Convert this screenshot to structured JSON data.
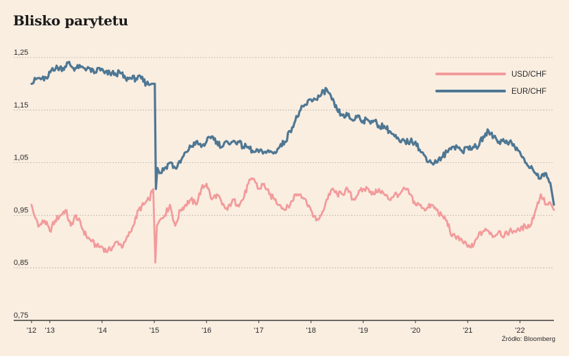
{
  "title": "Blisko parytetu",
  "source": "Źródło: Bloomberg",
  "colors": {
    "background": "#FAEEE1",
    "usdchf": "#F29B9B",
    "eurchf": "#4E7793",
    "grid": "#B8B0A8",
    "axis": "#3A3A3A"
  },
  "chart_data": {
    "type": "line",
    "title": "Blisko parytetu",
    "xlabel": "",
    "ylabel": "",
    "ylim": [
      0.75,
      1.25
    ],
    "yticks": [
      "1,25",
      "1,15",
      "1,05",
      "0,95",
      "0,85",
      "0,75"
    ],
    "ytick_values": [
      1.25,
      1.15,
      1.05,
      0.95,
      0.85,
      0.75
    ],
    "xlim": [
      2012.65,
      2022.65
    ],
    "xticks": [
      "'12",
      "'13",
      "'14",
      "'15",
      "'16",
      "'17",
      "'18",
      "'19",
      "'20",
      "'21",
      "'22"
    ],
    "xtick_values": [
      2012.65,
      2013,
      2014,
      2015,
      2016,
      2017,
      2018,
      2019,
      2020,
      2021,
      2022
    ],
    "grid": "horizontal dashed",
    "legend": "top-right",
    "series": [
      {
        "name": "USD/CHF",
        "x": [
          2012.65,
          2012.7,
          2012.8,
          2012.9,
          2013.0,
          2013.1,
          2013.2,
          2013.3,
          2013.4,
          2013.5,
          2013.6,
          2013.7,
          2013.8,
          2013.9,
          2014.0,
          2014.1,
          2014.2,
          2014.3,
          2014.4,
          2014.5,
          2014.6,
          2014.7,
          2014.8,
          2014.9,
          2014.98,
          2015.02,
          2015.05,
          2015.1,
          2015.2,
          2015.3,
          2015.4,
          2015.5,
          2015.6,
          2015.7,
          2015.8,
          2015.9,
          2016.0,
          2016.1,
          2016.2,
          2016.3,
          2016.4,
          2016.5,
          2016.6,
          2016.7,
          2016.8,
          2016.9,
          2017.0,
          2017.1,
          2017.2,
          2017.3,
          2017.4,
          2017.5,
          2017.6,
          2017.7,
          2017.8,
          2017.9,
          2018.0,
          2018.1,
          2018.2,
          2018.3,
          2018.4,
          2018.5,
          2018.6,
          2018.7,
          2018.8,
          2018.9,
          2019.0,
          2019.1,
          2019.2,
          2019.3,
          2019.4,
          2019.5,
          2019.6,
          2019.7,
          2019.8,
          2019.9,
          2020.0,
          2020.1,
          2020.2,
          2020.3,
          2020.4,
          2020.5,
          2020.6,
          2020.7,
          2020.8,
          2020.9,
          2021.0,
          2021.1,
          2021.2,
          2021.3,
          2021.4,
          2021.5,
          2021.6,
          2021.7,
          2021.8,
          2021.9,
          2022.0,
          2022.1,
          2022.2,
          2022.3,
          2022.4,
          2022.5,
          2022.6,
          2022.65
        ],
        "values": [
          0.97,
          0.95,
          0.93,
          0.94,
          0.92,
          0.94,
          0.95,
          0.96,
          0.93,
          0.95,
          0.93,
          0.91,
          0.9,
          0.89,
          0.89,
          0.88,
          0.89,
          0.9,
          0.89,
          0.91,
          0.93,
          0.96,
          0.97,
          0.98,
          1.0,
          0.86,
          0.93,
          0.94,
          0.95,
          0.97,
          0.93,
          0.96,
          0.97,
          0.98,
          0.97,
          1.0,
          1.01,
          0.98,
          0.99,
          0.97,
          0.96,
          0.98,
          0.97,
          0.98,
          1.01,
          1.02,
          1.0,
          1.01,
          0.99,
          0.98,
          0.97,
          0.96,
          0.97,
          0.99,
          0.99,
          0.98,
          0.96,
          0.94,
          0.95,
          0.98,
          1.0,
          0.99,
          0.99,
          1.0,
          0.98,
          0.99,
          1.0,
          1.0,
          0.99,
          1.0,
          0.99,
          0.98,
          0.99,
          0.99,
          1.0,
          0.99,
          0.97,
          0.97,
          0.96,
          0.97,
          0.96,
          0.95,
          0.94,
          0.91,
          0.91,
          0.9,
          0.89,
          0.89,
          0.91,
          0.92,
          0.92,
          0.91,
          0.92,
          0.91,
          0.92,
          0.92,
          0.92,
          0.93,
          0.93,
          0.96,
          0.99,
          0.97,
          0.97,
          0.96
        ]
      },
      {
        "name": "EUR/CHF",
        "x": [
          2012.65,
          2012.75,
          2012.85,
          2012.95,
          2013.05,
          2013.15,
          2013.25,
          2013.35,
          2013.45,
          2013.55,
          2013.65,
          2013.75,
          2013.85,
          2013.95,
          2014.05,
          2014.15,
          2014.25,
          2014.35,
          2014.45,
          2014.55,
          2014.65,
          2014.75,
          2014.85,
          2014.95,
          2015.01,
          2015.03,
          2015.06,
          2015.1,
          2015.2,
          2015.3,
          2015.4,
          2015.5,
          2015.6,
          2015.7,
          2015.8,
          2015.9,
          2016.0,
          2016.1,
          2016.2,
          2016.3,
          2016.4,
          2016.5,
          2016.6,
          2016.7,
          2016.8,
          2016.9,
          2017.0,
          2017.1,
          2017.2,
          2017.3,
          2017.4,
          2017.5,
          2017.6,
          2017.7,
          2017.8,
          2017.9,
          2018.0,
          2018.1,
          2018.2,
          2018.3,
          2018.4,
          2018.5,
          2018.6,
          2018.7,
          2018.8,
          2018.9,
          2019.0,
          2019.1,
          2019.2,
          2019.3,
          2019.4,
          2019.5,
          2019.6,
          2019.7,
          2019.8,
          2019.9,
          2020.0,
          2020.1,
          2020.2,
          2020.3,
          2020.4,
          2020.5,
          2020.6,
          2020.7,
          2020.8,
          2020.9,
          2021.0,
          2021.1,
          2021.2,
          2021.3,
          2021.4,
          2021.5,
          2021.6,
          2021.7,
          2021.8,
          2021.9,
          2022.0,
          2022.1,
          2022.2,
          2022.3,
          2022.4,
          2022.5,
          2022.6,
          2022.65
        ],
        "values": [
          1.2,
          1.21,
          1.21,
          1.21,
          1.23,
          1.23,
          1.23,
          1.24,
          1.23,
          1.23,
          1.23,
          1.23,
          1.22,
          1.23,
          1.22,
          1.22,
          1.22,
          1.22,
          1.21,
          1.21,
          1.21,
          1.21,
          1.2,
          1.2,
          1.2,
          1.0,
          1.04,
          1.03,
          1.04,
          1.05,
          1.04,
          1.05,
          1.07,
          1.08,
          1.09,
          1.08,
          1.09,
          1.1,
          1.09,
          1.08,
          1.09,
          1.09,
          1.09,
          1.08,
          1.08,
          1.07,
          1.07,
          1.07,
          1.07,
          1.07,
          1.08,
          1.09,
          1.11,
          1.13,
          1.15,
          1.16,
          1.17,
          1.17,
          1.18,
          1.19,
          1.17,
          1.15,
          1.14,
          1.14,
          1.13,
          1.14,
          1.13,
          1.13,
          1.13,
          1.12,
          1.12,
          1.11,
          1.1,
          1.09,
          1.09,
          1.09,
          1.09,
          1.07,
          1.06,
          1.05,
          1.05,
          1.06,
          1.07,
          1.08,
          1.08,
          1.07,
          1.08,
          1.08,
          1.08,
          1.1,
          1.11,
          1.1,
          1.09,
          1.09,
          1.09,
          1.08,
          1.07,
          1.05,
          1.04,
          1.03,
          1.02,
          1.03,
          1.0,
          0.97
        ]
      }
    ]
  }
}
